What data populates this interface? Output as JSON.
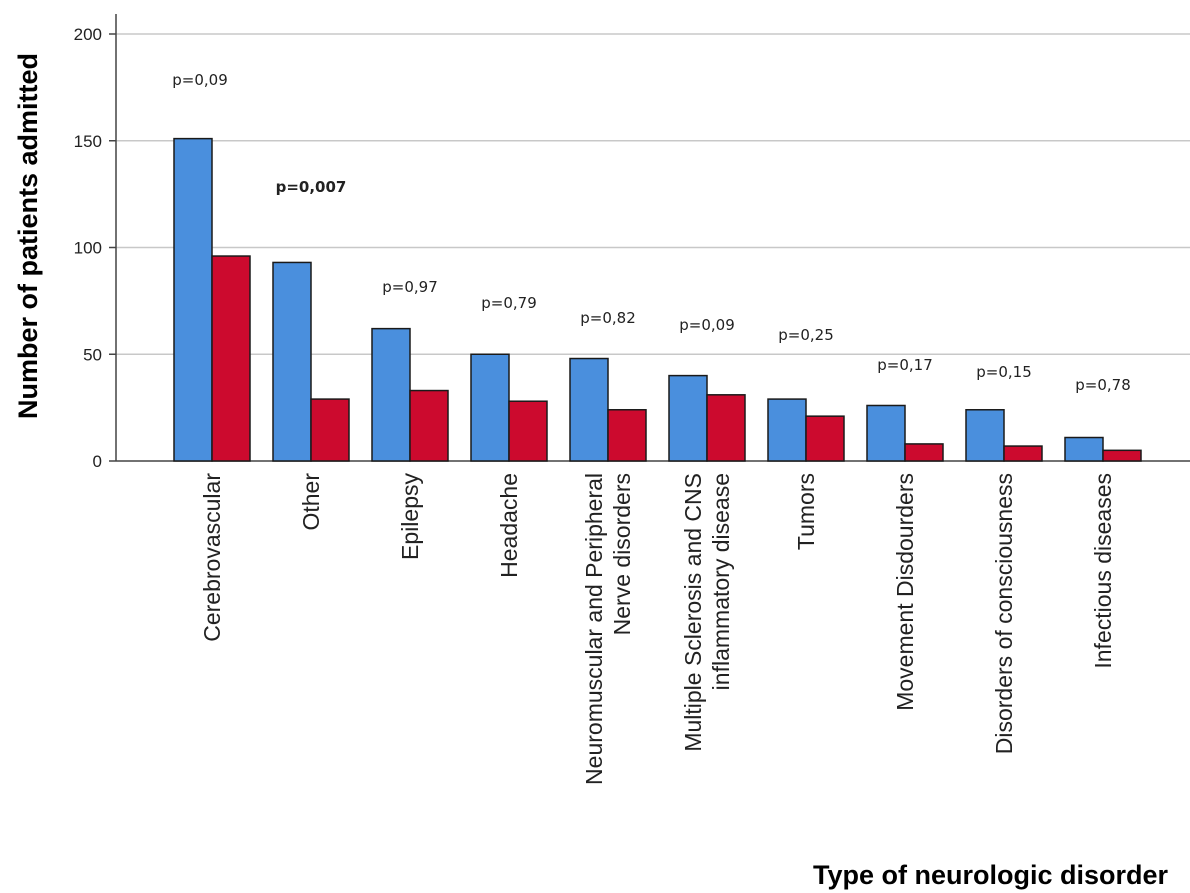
{
  "chart_data": {
    "type": "bar",
    "xlabel": "Type of neurologic disorder",
    "ylabel": "Number of patients admitted",
    "ylim": [
      0,
      200
    ],
    "yticks": [
      0,
      50,
      100,
      150,
      200
    ],
    "grid": "horizontal",
    "legend": "none",
    "categories": [
      [
        "Cerebrovascular"
      ],
      [
        "Other"
      ],
      [
        "Epilepsy"
      ],
      [
        "Headache"
      ],
      [
        "Neuromuscular  and Peripheral",
        "Nerve disorders"
      ],
      [
        "Multiple Sclerosis and CNS",
        "inflammatory disease"
      ],
      [
        "Tumors"
      ],
      [
        "Movement Disdourders"
      ],
      [
        "Disorders of consciousness"
      ],
      [
        "Infectious diseases"
      ]
    ],
    "series": [
      {
        "color": "#4a8fdd",
        "values": [
          151,
          93,
          62,
          50,
          48,
          40,
          29,
          26,
          24,
          11
        ]
      },
      {
        "color": "#cc0a2e",
        "values": [
          96,
          29,
          33,
          28,
          24,
          31,
          21,
          8,
          7,
          5
        ]
      }
    ],
    "annotations": [
      {
        "text": "p=0,09",
        "bold": false
      },
      {
        "text": "p=0,007",
        "bold": true
      },
      {
        "text": "p=0,97",
        "bold": false
      },
      {
        "text": "p=0,79",
        "bold": false
      },
      {
        "text": "p=0,82",
        "bold": false
      },
      {
        "text": "p=0,09",
        "bold": false
      },
      {
        "text": "p=0,25",
        "bold": false
      },
      {
        "text": "p=0,17",
        "bold": false
      },
      {
        "text": "p=0,15",
        "bold": false
      },
      {
        "text": "p=0,78",
        "bold": false
      }
    ]
  }
}
